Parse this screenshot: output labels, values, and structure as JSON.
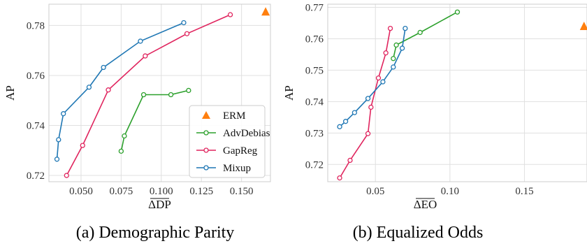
{
  "colors": {
    "erm": "#ff7f0e",
    "advdebias": "#2ca02c",
    "gapreg": "#e0245e",
    "mixup": "#1f77b4",
    "grid": "#e0e0e0",
    "frame": "#cccccc"
  },
  "legend": {
    "placement": "lower-right",
    "panel": 0,
    "entries": [
      "ERM",
      "AdvDebias",
      "GapReg",
      "Mixup"
    ]
  },
  "chart_data": [
    {
      "type": "scatter",
      "caption": "(a) Demographic Parity",
      "xlabel": "ΔDP",
      "ylabel": "AP",
      "xlim": [
        0.03,
        0.168
      ],
      "ylim": [
        0.7175,
        0.7885
      ],
      "xticks": [
        0.05,
        0.075,
        0.1,
        0.125,
        0.15
      ],
      "xtick_labels": [
        "0.050",
        "0.075",
        "0.100",
        "0.125",
        "0.150"
      ],
      "yticks": [
        0.72,
        0.74,
        0.76,
        0.78
      ],
      "ytick_labels": [
        "0.72",
        "0.74",
        "0.76",
        "0.78"
      ],
      "grid": true,
      "series": [
        {
          "name": "ERM",
          "marker": "triangle",
          "line": false,
          "points": [
            [
              0.165,
              0.7855
            ]
          ]
        },
        {
          "name": "AdvDebias",
          "marker": "circle",
          "line": true,
          "points": [
            [
              0.075,
              0.7297
            ],
            [
              0.077,
              0.7358
            ],
            [
              0.089,
              0.7523
            ],
            [
              0.106,
              0.7523
            ],
            [
              0.117,
              0.754
            ]
          ]
        },
        {
          "name": "GapReg",
          "marker": "circle",
          "line": true,
          "points": [
            [
              0.041,
              0.72
            ],
            [
              0.051,
              0.732
            ],
            [
              0.067,
              0.7542
            ],
            [
              0.09,
              0.7678
            ],
            [
              0.116,
              0.7767
            ],
            [
              0.143,
              0.7843
            ]
          ]
        },
        {
          "name": "Mixup",
          "marker": "circle",
          "line": true,
          "points": [
            [
              0.035,
              0.7265
            ],
            [
              0.036,
              0.7343
            ],
            [
              0.039,
              0.7447
            ],
            [
              0.055,
              0.7553
            ],
            [
              0.064,
              0.7632
            ],
            [
              0.087,
              0.7737
            ],
            [
              0.114,
              0.7811
            ]
          ]
        }
      ]
    },
    {
      "type": "scatter",
      "caption": "(b) Equalized Odds",
      "xlabel": "ΔEO",
      "ylabel": "AP",
      "xlim": [
        0.018,
        0.192
      ],
      "ylim": [
        0.7145,
        0.771
      ],
      "xticks": [
        0.05,
        0.1,
        0.15
      ],
      "xtick_labels": [
        "0.05",
        "0.10",
        "0.15"
      ],
      "yticks": [
        0.72,
        0.73,
        0.74,
        0.75,
        0.76,
        0.77
      ],
      "ytick_labels": [
        "0.72",
        "0.73",
        "0.74",
        "0.75",
        "0.76",
        "0.77"
      ],
      "grid": true,
      "series": [
        {
          "name": "ERM",
          "marker": "triangle",
          "line": false,
          "points": [
            [
              0.19,
              0.764
            ]
          ]
        },
        {
          "name": "AdvDebias",
          "marker": "circle",
          "line": true,
          "points": [
            [
              0.062,
              0.7537
            ],
            [
              0.064,
              0.758
            ],
            [
              0.08,
              0.762
            ],
            [
              0.105,
              0.7685
            ]
          ]
        },
        {
          "name": "GapReg",
          "marker": "circle",
          "line": true,
          "points": [
            [
              0.026,
              0.7157
            ],
            [
              0.033,
              0.7213
            ],
            [
              0.045,
              0.7298
            ],
            [
              0.047,
              0.7382
            ],
            [
              0.052,
              0.7475
            ],
            [
              0.057,
              0.7555
            ],
            [
              0.06,
              0.7633
            ]
          ]
        },
        {
          "name": "Mixup",
          "marker": "circle",
          "line": true,
          "points": [
            [
              0.026,
              0.732
            ],
            [
              0.03,
              0.7337
            ],
            [
              0.036,
              0.7365
            ],
            [
              0.045,
              0.741
            ],
            [
              0.055,
              0.7463
            ],
            [
              0.062,
              0.751
            ],
            [
              0.068,
              0.757
            ],
            [
              0.07,
              0.7633
            ]
          ]
        }
      ]
    }
  ]
}
